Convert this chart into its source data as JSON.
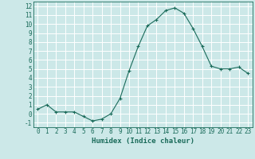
{
  "x": [
    0,
    1,
    2,
    3,
    4,
    5,
    6,
    7,
    8,
    9,
    10,
    11,
    12,
    13,
    14,
    15,
    16,
    17,
    18,
    19,
    20,
    21,
    22,
    23
  ],
  "y": [
    0.5,
    1.0,
    0.2,
    0.2,
    0.2,
    -0.3,
    -0.8,
    -0.6,
    0.0,
    1.7,
    4.8,
    7.5,
    9.8,
    10.5,
    11.5,
    11.8,
    11.2,
    9.5,
    7.5,
    5.3,
    5.0,
    5.0,
    5.2,
    4.5
  ],
  "bg_color": "#cce8e8",
  "line_color": "#1a6b5a",
  "marker": "+",
  "xlabel": "Humidex (Indice chaleur)",
  "xlim": [
    -0.5,
    23.5
  ],
  "ylim": [
    -1.5,
    12.5
  ],
  "yticks": [
    -1,
    0,
    1,
    2,
    3,
    4,
    5,
    6,
    7,
    8,
    9,
    10,
    11,
    12
  ],
  "xticks": [
    0,
    1,
    2,
    3,
    4,
    5,
    6,
    7,
    8,
    9,
    10,
    11,
    12,
    13,
    14,
    15,
    16,
    17,
    18,
    19,
    20,
    21,
    22,
    23
  ],
  "grid_color": "#ffffff",
  "font_color": "#1a6b5a",
  "tick_font_size": 5.5,
  "xlabel_fontsize": 6.5
}
